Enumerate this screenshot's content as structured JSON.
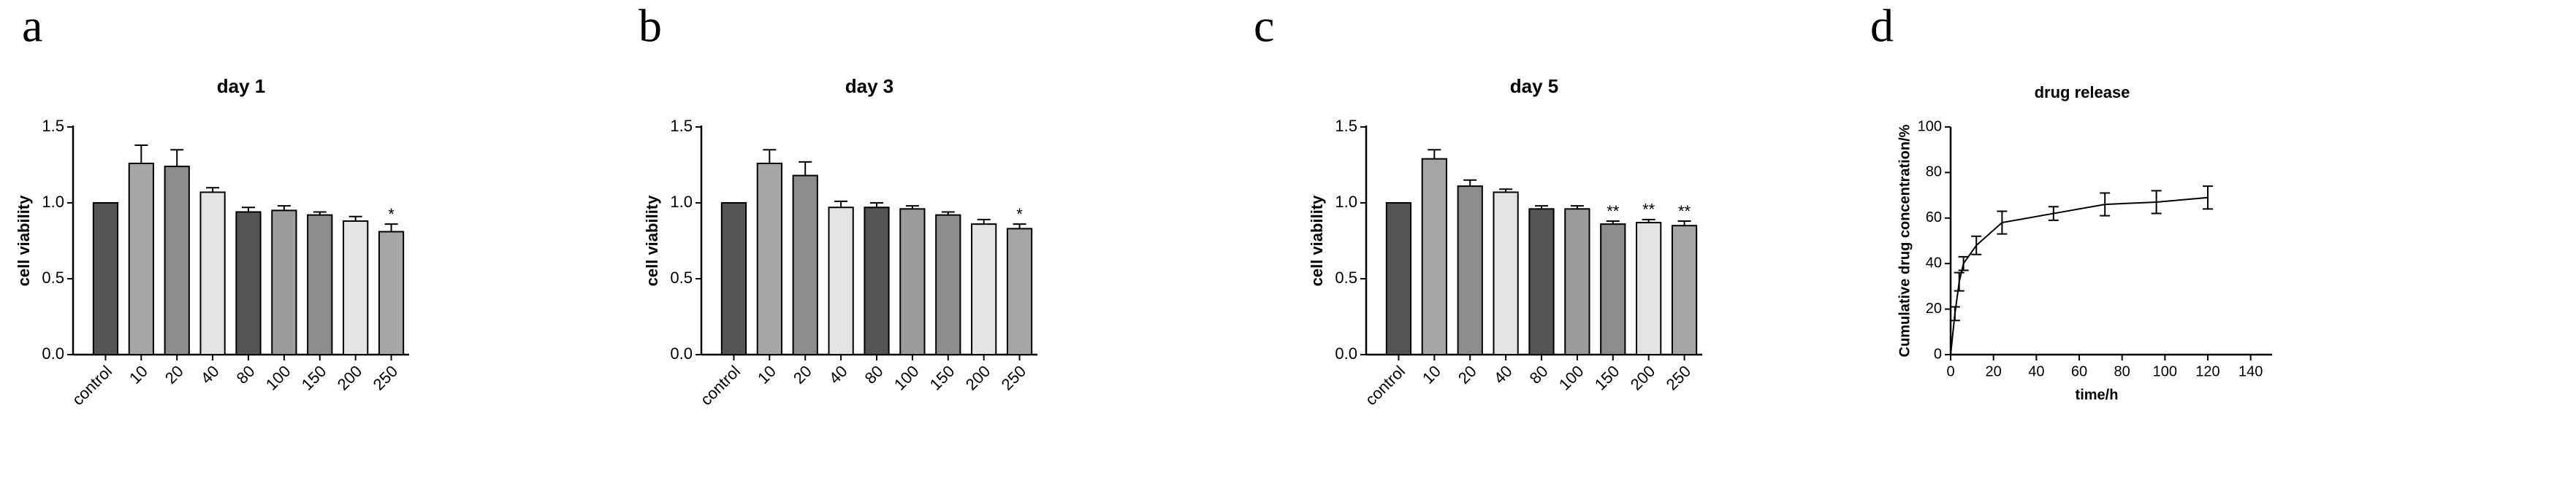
{
  "chart_data": [
    {
      "type": "bar",
      "panel_label": "a",
      "title": "day 1",
      "ylabel": "cell viability",
      "categories": [
        "control",
        "10",
        "20",
        "40",
        "80",
        "100",
        "150",
        "200",
        "250"
      ],
      "values": [
        1.0,
        1.26,
        1.24,
        1.07,
        0.94,
        0.95,
        0.92,
        0.88,
        0.81
      ],
      "errors": [
        0,
        0.12,
        0.11,
        0.03,
        0.03,
        0.03,
        0.02,
        0.03,
        0.05
      ],
      "significance": [
        null,
        null,
        null,
        null,
        null,
        null,
        null,
        null,
        "*"
      ],
      "colors": [
        "#555555",
        "#a6a6a6",
        "#8c8c8c",
        "#e3e3e3",
        "#555555",
        "#9c9c9c",
        "#8c8c8c",
        "#e3e3e3",
        "#a6a6a6"
      ],
      "ylim": [
        0,
        1.5
      ],
      "yticks": [
        {
          "value": 0,
          "label": "0.0"
        },
        {
          "value": 0.5,
          "label": "0.5"
        },
        {
          "value": 1,
          "label": "1.0"
        },
        {
          "value": 1.5,
          "label": "1.5"
        }
      ]
    },
    {
      "type": "bar",
      "panel_label": "b",
      "title": "day 3",
      "ylabel": "cell viability",
      "categories": [
        "control",
        "10",
        "20",
        "40",
        "80",
        "100",
        "150",
        "200",
        "250"
      ],
      "values": [
        1.0,
        1.26,
        1.18,
        0.97,
        0.97,
        0.96,
        0.92,
        0.86,
        0.83
      ],
      "errors": [
        0,
        0.09,
        0.09,
        0.04,
        0.03,
        0.02,
        0.02,
        0.03,
        0.03
      ],
      "significance": [
        null,
        null,
        null,
        null,
        null,
        null,
        null,
        null,
        "*"
      ],
      "colors": [
        "#555555",
        "#a6a6a6",
        "#8c8c8c",
        "#e3e3e3",
        "#555555",
        "#9c9c9c",
        "#8c8c8c",
        "#e3e3e3",
        "#a6a6a6"
      ],
      "ylim": [
        0,
        1.5
      ],
      "yticks": [
        {
          "value": 0,
          "label": "0.0"
        },
        {
          "value": 0.5,
          "label": "0.5"
        },
        {
          "value": 1,
          "label": "1.0"
        },
        {
          "value": 1.5,
          "label": "1.5"
        }
      ]
    },
    {
      "type": "bar",
      "panel_label": "c",
      "title": "day 5",
      "ylabel": "cell viability",
      "categories": [
        "control",
        "10",
        "20",
        "40",
        "80",
        "100",
        "150",
        "200",
        "250"
      ],
      "values": [
        1.0,
        1.29,
        1.11,
        1.07,
        0.96,
        0.96,
        0.86,
        0.87,
        0.85
      ],
      "errors": [
        0,
        0.06,
        0.04,
        0.02,
        0.02,
        0.02,
        0.02,
        0.02,
        0.03
      ],
      "significance": [
        null,
        null,
        null,
        null,
        null,
        null,
        "**",
        "**",
        "**"
      ],
      "colors": [
        "#555555",
        "#a6a6a6",
        "#8c8c8c",
        "#e3e3e3",
        "#555555",
        "#9c9c9c",
        "#8c8c8c",
        "#e3e3e3",
        "#a6a6a6"
      ],
      "ylim": [
        0,
        1.5
      ],
      "yticks": [
        {
          "value": 0,
          "label": "0.0"
        },
        {
          "value": 0.5,
          "label": "0.5"
        },
        {
          "value": 1,
          "label": "1.0"
        },
        {
          "value": 1.5,
          "label": "1.5"
        }
      ]
    },
    {
      "type": "line",
      "panel_label": "d",
      "title": "drug release",
      "xlabel": "time/h",
      "ylabel": "Cumulative drug concentration/%",
      "x": [
        0,
        2,
        4,
        6,
        12,
        24,
        48,
        72,
        96,
        120
      ],
      "values": [
        0,
        18,
        32,
        40,
        48,
        58,
        62,
        66,
        67,
        69
      ],
      "errors": [
        0,
        3,
        4,
        3,
        4,
        5,
        3,
        5,
        5,
        5
      ],
      "color": "#000000",
      "xlim": [
        0,
        150
      ],
      "xticks": [
        0,
        20,
        40,
        60,
        80,
        100,
        120,
        140
      ],
      "ylim": [
        0,
        100
      ],
      "yticks": [
        0,
        20,
        40,
        60,
        80,
        100
      ]
    }
  ]
}
